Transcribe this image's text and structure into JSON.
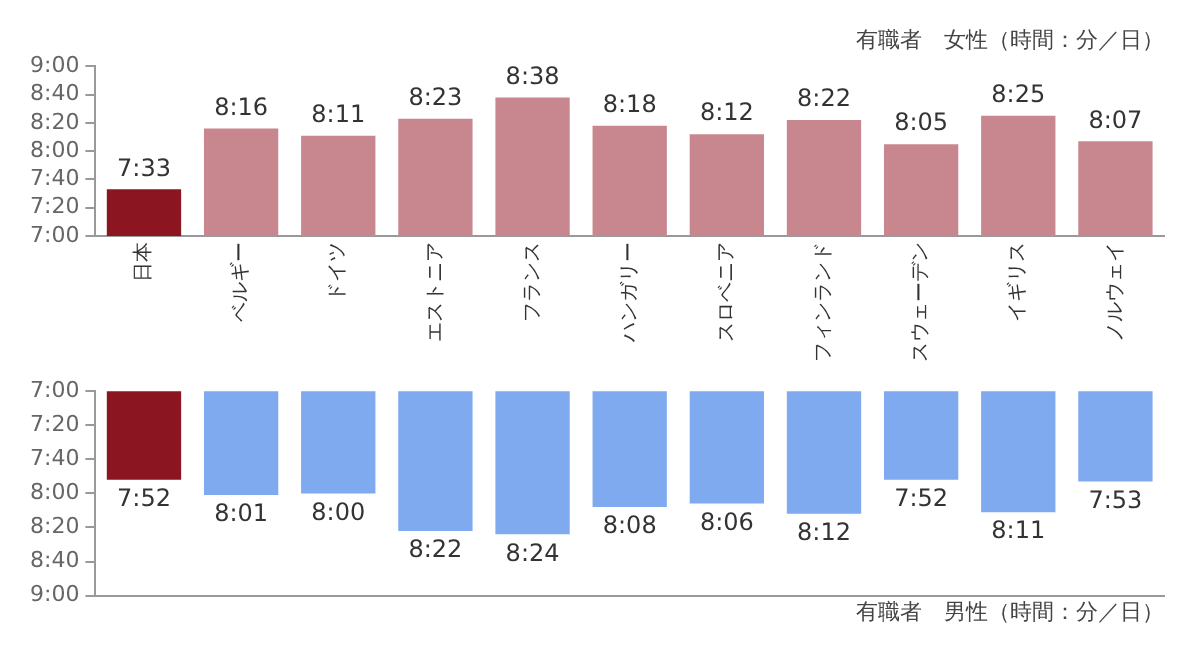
{
  "chart_data": [
    {
      "type": "bar",
      "title": "有職者　女性（時間：分／日）",
      "categories": [
        "日本",
        "ベルギー",
        "ドイツ",
        "エストニア",
        "フランス",
        "ハンガリー",
        "スロベニア",
        "フィンランド",
        "スウェーデン",
        "イギリス",
        "ノルウェイ"
      ],
      "values": [
        7.55,
        8.2667,
        8.1833,
        8.3833,
        8.6333,
        8.3,
        8.2,
        8.3667,
        8.0833,
        8.4167,
        8.1167
      ],
      "value_labels": [
        "7:33",
        "8:16",
        "8:11",
        "8:23",
        "8:38",
        "8:18",
        "8:12",
        "8:22",
        "8:05",
        "8:25",
        "8:07"
      ],
      "colors": [
        "#8b1521",
        "#c8878f",
        "#c8878f",
        "#c8878f",
        "#c8878f",
        "#c8878f",
        "#c8878f",
        "#c8878f",
        "#c8878f",
        "#c8878f",
        "#c8878f"
      ],
      "ylim": [
        7,
        9
      ],
      "yticks": [
        {
          "value": 7,
          "label": "7:00"
        },
        {
          "value": 7.3333,
          "label": "7:20"
        },
        {
          "value": 7.6667,
          "label": "7:40"
        },
        {
          "value": 8,
          "label": "8:00"
        },
        {
          "value": 8.3333,
          "label": "8:20"
        },
        {
          "value": 8.6667,
          "label": "8:40"
        },
        {
          "value": 9,
          "label": "9:00"
        }
      ],
      "grid": false,
      "legend": false
    },
    {
      "type": "bar",
      "title": "有職者　男性（時間：分／日）",
      "categories": [
        null,
        null,
        null,
        null,
        null,
        null,
        null,
        null,
        null,
        null,
        null
      ],
      "values": [
        7.8667,
        8.0167,
        8,
        8.3667,
        8.4,
        8.1333,
        8.1,
        8.2,
        7.8667,
        8.1833,
        7.8833
      ],
      "value_labels": [
        "7:52",
        "8:01",
        "8:00",
        "8:22",
        "8:24",
        "8:08",
        "8:06",
        "8:12",
        "7:52",
        "8:11",
        "7:53"
      ],
      "colors": [
        "#8b1521",
        "#7faaf0",
        "#7faaf0",
        "#7faaf0",
        "#7faaf0",
        "#7faaf0",
        "#7faaf0",
        "#7faaf0",
        "#7faaf0",
        "#7faaf0",
        "#7faaf0"
      ],
      "ylim": [
        9,
        7
      ],
      "yticks": [
        {
          "value": 7,
          "label": "7:00"
        },
        {
          "value": 7.3333,
          "label": "7:20"
        },
        {
          "value": 7.6667,
          "label": "7:40"
        },
        {
          "value": 8,
          "label": "8:00"
        },
        {
          "value": 8.3333,
          "label": "8:20"
        },
        {
          "value": 8.6667,
          "label": "8:40"
        },
        {
          "value": 9,
          "label": "9:00"
        }
      ],
      "tick_labels": "y",
      "grid": false,
      "legend": false
    }
  ]
}
